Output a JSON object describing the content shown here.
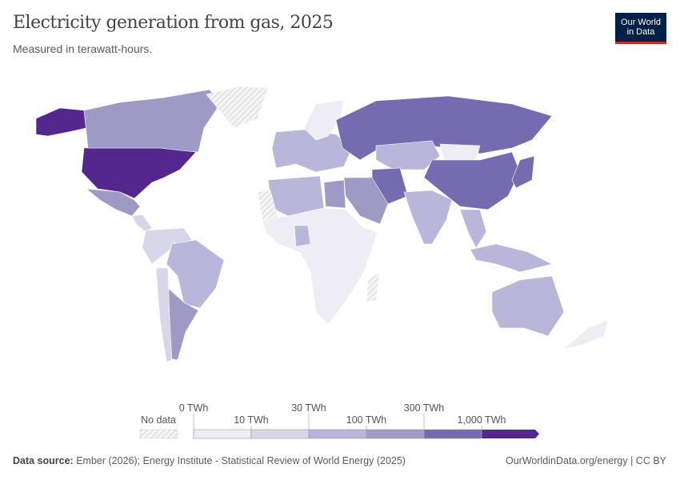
{
  "header": {
    "title": "Electricity generation from gas, 2025",
    "subtitle": "Measured in terawatt-hours.",
    "logo": [
      "Our World",
      "in Data"
    ]
  },
  "legend": {
    "no_data_label": "No data",
    "thresholds": [
      "0 TWh",
      "10 TWh",
      "30 TWh",
      "100 TWh",
      "300 TWh",
      "1,000 TWh"
    ],
    "colors": [
      "#eeedf5",
      "#d8d7ea",
      "#b8b7da",
      "#9d9ac6",
      "#756bb1",
      "#54278f"
    ],
    "no_data_color": "#e8e8e8"
  },
  "map_data": {
    "regions": [
      {
        "id": "alaska",
        "bin": 5
      },
      {
        "id": "usa",
        "bin": 5
      },
      {
        "id": "canada",
        "bin": 3
      },
      {
        "id": "greenland",
        "bin": -1
      },
      {
        "id": "mexico",
        "bin": 3
      },
      {
        "id": "central-america",
        "bin": 1
      },
      {
        "id": "south-america-north",
        "bin": 1
      },
      {
        "id": "brazil",
        "bin": 2
      },
      {
        "id": "argentina",
        "bin": 3
      },
      {
        "id": "chile",
        "bin": 1
      },
      {
        "id": "europe",
        "bin": 2
      },
      {
        "id": "scandinavia",
        "bin": 0
      },
      {
        "id": "russia",
        "bin": 4
      },
      {
        "id": "kazakhstan",
        "bin": 2
      },
      {
        "id": "iran",
        "bin": 4
      },
      {
        "id": "saudi-arabia",
        "bin": 3
      },
      {
        "id": "north-africa",
        "bin": 2
      },
      {
        "id": "egypt",
        "bin": 3
      },
      {
        "id": "western-sahara",
        "bin": -1
      },
      {
        "id": "africa",
        "bin": 0
      },
      {
        "id": "nigeria",
        "bin": 2
      },
      {
        "id": "mongolia",
        "bin": 0
      },
      {
        "id": "china",
        "bin": 4
      },
      {
        "id": "india",
        "bin": 2
      },
      {
        "id": "southeast-asia",
        "bin": 2
      },
      {
        "id": "japan",
        "bin": 4
      },
      {
        "id": "indonesia",
        "bin": 2
      },
      {
        "id": "australia",
        "bin": 2
      },
      {
        "id": "new-zealand",
        "bin": 0
      },
      {
        "id": "madagascar",
        "bin": -1
      }
    ]
  },
  "footer": {
    "source_label": "Data source:",
    "source": "Ember (2026); Energy Institute - Statistical Review of World Energy (2025)",
    "right": "OurWorldinData.org/energy | CC BY"
  }
}
